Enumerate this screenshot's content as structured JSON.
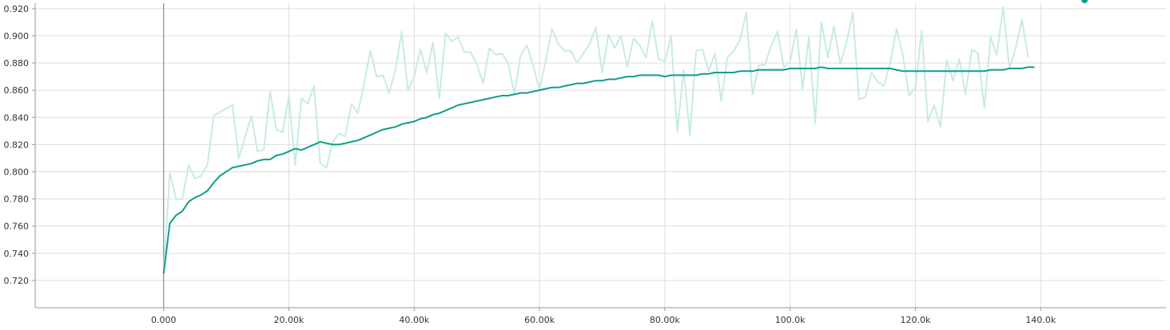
{
  "chart_data": {
    "type": "line",
    "title": "",
    "xlabel": "",
    "ylabel": "",
    "xlim": [
      -20500,
      160000
    ],
    "ylim": [
      0.7,
      0.924
    ],
    "x_ticks": [
      0,
      20000,
      40000,
      60000,
      80000,
      100000,
      120000,
      140000
    ],
    "x_tick_labels": [
      "0.000",
      "20.00k",
      "40.00k",
      "60.00k",
      "80.00k",
      "100.0k",
      "120.0k",
      "140.0k"
    ],
    "y_ticks": [
      0.72,
      0.74,
      0.76,
      0.78,
      0.8,
      0.82,
      0.84,
      0.86,
      0.88,
      0.9,
      0.92
    ],
    "y_tick_labels": [
      "0.720",
      "0.740",
      "0.760",
      "0.780",
      "0.800",
      "0.820",
      "0.840",
      "0.860",
      "0.880",
      "0.900",
      "0.920"
    ],
    "grid": true,
    "colors": {
      "smoothed": "#0f9d8a",
      "raw": "#c8ebe3",
      "grid": "#dddddd",
      "axis": "#999999",
      "zero_line": "#8a8a8a"
    },
    "raw_x": [
      0,
      1000,
      2000,
      3000,
      4000,
      5000,
      6000,
      7000,
      8000,
      9000,
      11000,
      12000,
      14000,
      15000,
      16000,
      17000,
      18000,
      19000,
      20000,
      21000,
      22000,
      23000,
      24000,
      25000,
      26000,
      27000,
      28000,
      29000,
      30000,
      31000,
      32000,
      33000,
      34000,
      35000,
      36000,
      37000,
      38000,
      39000,
      40000,
      41000,
      42000,
      43000,
      44000,
      45000,
      46000,
      47000,
      48000,
      49000,
      50000,
      51000,
      52000,
      53000,
      54000,
      55000,
      56000,
      57000,
      58000,
      59000,
      60000,
      61000,
      62000,
      63000,
      64000,
      65000,
      66000,
      67000,
      68000,
      69000,
      70000,
      71000,
      72000,
      73000,
      74000,
      75000,
      76000,
      77000,
      78000,
      79000,
      80000,
      81000,
      82000,
      83000,
      84000,
      85000,
      86000,
      87000,
      88000,
      89000,
      90000,
      91000,
      92000,
      93000,
      94000,
      95000,
      96000,
      97000,
      98000,
      99000,
      100000,
      101000,
      102000,
      103000,
      104000,
      105000,
      106000,
      107000,
      108000,
      109000,
      110000,
      111000,
      112000,
      113000,
      114000,
      115000,
      116000,
      117000,
      118000,
      119000,
      120000,
      121000,
      122000,
      123000,
      124000,
      125000,
      126000,
      127000,
      128000,
      129000,
      130000,
      131000,
      132000,
      133000,
      134000,
      135000,
      136000,
      137000,
      138000,
      139000,
      140000,
      141000,
      142000,
      143000,
      144000,
      145000,
      146000,
      147000
    ],
    "raw_y": [
      0.726,
      0.799,
      0.78,
      0.78,
      0.805,
      0.795,
      0.797,
      0.805,
      0.841,
      0.844,
      0.849,
      0.81,
      0.841,
      0.815,
      0.816,
      0.859,
      0.831,
      0.829,
      0.856,
      0.805,
      0.854,
      0.85,
      0.863,
      0.806,
      0.803,
      0.822,
      0.828,
      0.826,
      0.85,
      0.843,
      0.865,
      0.889,
      0.87,
      0.871,
      0.858,
      0.875,
      0.903,
      0.86,
      0.87,
      0.89,
      0.873,
      0.895,
      0.854,
      0.902,
      0.896,
      0.899,
      0.888,
      0.888,
      0.879,
      0.865,
      0.891,
      0.886,
      0.887,
      0.88,
      0.857,
      0.886,
      0.893,
      0.878,
      0.86,
      0.882,
      0.905,
      0.894,
      0.889,
      0.889,
      0.88,
      0.887,
      0.894,
      0.906,
      0.873,
      0.901,
      0.891,
      0.9,
      0.877,
      0.898,
      0.893,
      0.884,
      0.911,
      0.883,
      0.881,
      0.9,
      0.829,
      0.875,
      0.827,
      0.889,
      0.89,
      0.874,
      0.887,
      0.852,
      0.884,
      0.889,
      0.897,
      0.917,
      0.857,
      0.878,
      0.879,
      0.893,
      0.903,
      0.877,
      0.881,
      0.905,
      0.861,
      0.899,
      0.836,
      0.91,
      0.884,
      0.907,
      0.879,
      0.895,
      0.917,
      0.853,
      0.855,
      0.873,
      0.866,
      0.863,
      0.881,
      0.905,
      0.886,
      0.856,
      0.862,
      0.904,
      0.837,
      0.849,
      0.833,
      0.882,
      0.867,
      0.883,
      0.857,
      0.89,
      0.887,
      0.847,
      0.899,
      0.886,
      0.921,
      0.876,
      0.891,
      0.912,
      0.884
    ],
    "smoothed_x": [
      0,
      1000,
      2000,
      3000,
      4000,
      5000,
      6000,
      7000,
      8000,
      9000,
      11000,
      12000,
      14000,
      15000,
      16000,
      17000,
      18000,
      19000,
      20000,
      21000,
      22000,
      23000,
      24000,
      25000,
      26000,
      27000,
      28000,
      29000,
      30000,
      31000,
      32000,
      33000,
      34000,
      35000,
      36000,
      37000,
      38000,
      39000,
      40000,
      41000,
      42000,
      43000,
      44000,
      45000,
      46000,
      47000,
      48000,
      49000,
      50000,
      51000,
      52000,
      53000,
      54000,
      55000,
      56000,
      57000,
      58000,
      59000,
      60000,
      61000,
      62000,
      63000,
      64000,
      65000,
      66000,
      67000,
      68000,
      69000,
      70000,
      71000,
      72000,
      73000,
      74000,
      75000,
      76000,
      77000,
      78000,
      79000,
      80000,
      81000,
      82000,
      83000,
      84000,
      85000,
      86000,
      87000,
      88000,
      89000,
      90000,
      91000,
      92000,
      93000,
      94000,
      95000,
      96000,
      97000,
      98000,
      99000,
      100000,
      101000,
      102000,
      103000,
      104000,
      105000,
      106000,
      107000,
      108000,
      109000,
      110000,
      111000,
      112000,
      113000,
      114000,
      115000,
      116000,
      117000,
      118000,
      119000,
      120000,
      121000,
      122000,
      123000,
      124000,
      125000,
      126000,
      127000,
      128000,
      129000,
      130000,
      131000,
      132000,
      133000,
      134000,
      135000,
      136000,
      137000,
      138000,
      139000,
      140000,
      141000,
      142000,
      143000,
      144000,
      145000,
      146000,
      147000
    ],
    "smoothed_y": [
      0.725,
      0.762,
      0.768,
      0.771,
      0.778,
      0.781,
      0.783,
      0.786,
      0.792,
      0.797,
      0.803,
      0.804,
      0.806,
      0.808,
      0.809,
      0.809,
      0.812,
      0.813,
      0.815,
      0.817,
      0.816,
      0.818,
      0.82,
      0.822,
      0.821,
      0.82,
      0.82,
      0.821,
      0.822,
      0.823,
      0.825,
      0.827,
      0.829,
      0.831,
      0.832,
      0.833,
      0.835,
      0.836,
      0.837,
      0.839,
      0.84,
      0.842,
      0.843,
      0.845,
      0.847,
      0.849,
      0.85,
      0.851,
      0.852,
      0.853,
      0.854,
      0.855,
      0.856,
      0.856,
      0.857,
      0.858,
      0.858,
      0.859,
      0.86,
      0.861,
      0.862,
      0.862,
      0.863,
      0.864,
      0.865,
      0.865,
      0.866,
      0.867,
      0.867,
      0.868,
      0.868,
      0.869,
      0.87,
      0.87,
      0.871,
      0.871,
      0.871,
      0.871,
      0.87,
      0.871,
      0.871,
      0.871,
      0.871,
      0.871,
      0.872,
      0.872,
      0.873,
      0.873,
      0.873,
      0.873,
      0.874,
      0.874,
      0.874,
      0.875,
      0.875,
      0.875,
      0.875,
      0.875,
      0.876,
      0.876,
      0.876,
      0.876,
      0.876,
      0.877,
      0.876,
      0.876,
      0.876,
      0.876,
      0.876,
      0.876,
      0.876,
      0.876,
      0.876,
      0.876,
      0.876,
      0.875,
      0.874,
      0.874,
      0.874,
      0.874,
      0.874,
      0.874,
      0.874,
      0.874,
      0.874,
      0.874,
      0.874,
      0.874,
      0.874,
      0.874,
      0.875,
      0.875,
      0.875,
      0.876,
      0.876,
      0.876,
      0.877,
      0.877
    ]
  }
}
